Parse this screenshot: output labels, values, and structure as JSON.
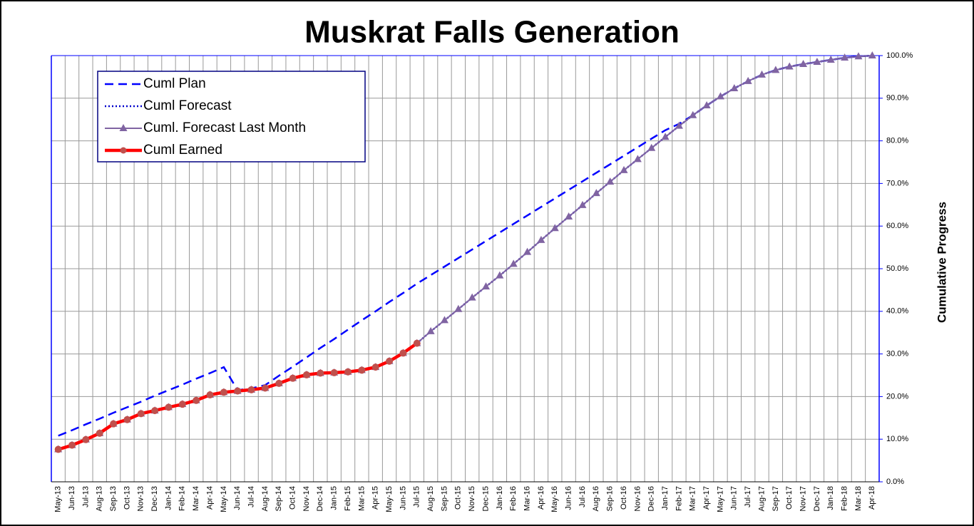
{
  "chart_data": {
    "type": "line",
    "title": "Muskrat Falls Generation",
    "y_label": "Cumulative Progress",
    "categories": [
      "May-13",
      "Jun-13",
      "Jul-13",
      "Aug-13",
      "Sep-13",
      "Oct-13",
      "Nov-13",
      "Dec-13",
      "Jan-14",
      "Feb-14",
      "Mar-14",
      "Apr-14",
      "May-14",
      "Jun-14",
      "Jul-14",
      "Aug-14",
      "Sep-14",
      "Oct-14",
      "Nov-14",
      "Dec-14",
      "Jan-15",
      "Feb-15",
      "Mar-15",
      "Apr-15",
      "May-15",
      "Jun-15",
      "Jul-15",
      "Aug-15",
      "Sep-15",
      "Oct-15",
      "Nov-15",
      "Dec-15",
      "Jan-16",
      "Feb-16",
      "Mar-16",
      "Apr-16",
      "May-16",
      "Jun-16",
      "Jul-16",
      "Aug-16",
      "Sep-16",
      "Oct-16",
      "Nov-16",
      "Dec-16",
      "Jan-17",
      "Feb-17",
      "Mar-17",
      "Apr-17",
      "May-17",
      "Jun-17",
      "Jul-17",
      "Aug-17",
      "Sep-17",
      "Oct-17",
      "Nov-17",
      "Dec-17",
      "Jan-18",
      "Feb-18",
      "Mar-18",
      "Apr-18"
    ],
    "series": [
      {
        "name": "Cuml Plan",
        "color": "#0000ff",
        "style": "dashed",
        "values": [
          10.8,
          12.1,
          13.5,
          14.8,
          16.2,
          17.5,
          18.8,
          20.2,
          21.5,
          22.8,
          24.2,
          25.5,
          26.9,
          21.5,
          21.9,
          22.7,
          24.9,
          27.0,
          29.2,
          31.4,
          33.5,
          35.7,
          37.9,
          40.0,
          42.2,
          44.3,
          46.5,
          48.5,
          50.5,
          52.5,
          54.5,
          56.5,
          58.5,
          60.5,
          62.5,
          64.5,
          66.5,
          68.5,
          70.5,
          72.5,
          74.5,
          76.5,
          78.5,
          80.5,
          82.5,
          84.0,
          86.0,
          88.3,
          90.4,
          92.3,
          94.0,
          95.5,
          96.6,
          97.4,
          98.0,
          98.5,
          99.0,
          99.5,
          99.8,
          100.0
        ]
      },
      {
        "name": "Cuml Forecast",
        "color": "#0000cc",
        "style": "dotted",
        "values": [
          null,
          null,
          null,
          null,
          null,
          null,
          null,
          null,
          null,
          null,
          null,
          null,
          null,
          null,
          null,
          null,
          null,
          null,
          null,
          null,
          null,
          null,
          null,
          null,
          null,
          null,
          32.5,
          35.3,
          37.9,
          40.5,
          43.2,
          45.8,
          48.4,
          51.1,
          53.9,
          56.7,
          59.5,
          62.2,
          64.9,
          67.7,
          70.4,
          73.1,
          75.7,
          78.3,
          80.9,
          83.5,
          86.0,
          88.3,
          90.4,
          92.3,
          94.0,
          95.5,
          96.6,
          97.4,
          98.0,
          98.5,
          99.0,
          99.5,
          99.8,
          100.0
        ]
      },
      {
        "name": "Cuml. Forecast Last Month",
        "color": "#8064a2",
        "style": "solid",
        "marker": "triangle",
        "values": [
          7.6,
          8.6,
          9.9,
          11.4,
          13.6,
          14.6,
          16.0,
          16.7,
          17.5,
          18.2,
          19.1,
          20.4,
          21.0,
          21.3,
          21.6,
          22.0,
          23.1,
          24.3,
          25.1,
          25.5,
          25.6,
          25.8,
          26.2,
          26.9,
          28.3,
          30.2,
          32.5,
          35.3,
          37.9,
          40.5,
          43.2,
          45.8,
          48.4,
          51.1,
          53.9,
          56.7,
          59.5,
          62.2,
          64.9,
          67.7,
          70.4,
          73.1,
          75.7,
          78.3,
          80.9,
          83.5,
          86.0,
          88.3,
          90.4,
          92.3,
          94.0,
          95.5,
          96.6,
          97.4,
          98.0,
          98.5,
          99.0,
          99.5,
          99.8,
          100.0
        ]
      },
      {
        "name": "Cuml Earned",
        "color": "#ff0000",
        "style": "solid",
        "marker": "circle",
        "marker_color": "#c0504d",
        "values": [
          7.6,
          8.6,
          9.9,
          11.4,
          13.6,
          14.6,
          16.0,
          16.7,
          17.5,
          18.2,
          19.1,
          20.4,
          21.0,
          21.3,
          21.6,
          22.0,
          23.1,
          24.3,
          25.1,
          25.5,
          25.6,
          25.8,
          26.2,
          26.9,
          28.3,
          30.2,
          32.5,
          null,
          null,
          null,
          null,
          null,
          null,
          null,
          null,
          null,
          null,
          null,
          null,
          null,
          null,
          null,
          null,
          null,
          null,
          null,
          null,
          null,
          null,
          null,
          null,
          null,
          null,
          null,
          null,
          null,
          null,
          null,
          null,
          null
        ]
      }
    ],
    "ylim": [
      0,
      100
    ],
    "yticks": [
      {
        "value": 0,
        "label": "0.0%"
      },
      {
        "value": 10,
        "label": "10.0%"
      },
      {
        "value": 20,
        "label": "20.0%"
      },
      {
        "value": 30,
        "label": "30.0%"
      },
      {
        "value": 40,
        "label": "40.0%"
      },
      {
        "value": 50,
        "label": "50.0%"
      },
      {
        "value": 60,
        "label": "60.0%"
      },
      {
        "value": 70,
        "label": "70.0%"
      },
      {
        "value": 80,
        "label": "80.0%"
      },
      {
        "value": 90,
        "label": "90.0%"
      },
      {
        "value": 100,
        "label": "100.0%"
      }
    ],
    "grid": true,
    "legend": "upper left"
  }
}
